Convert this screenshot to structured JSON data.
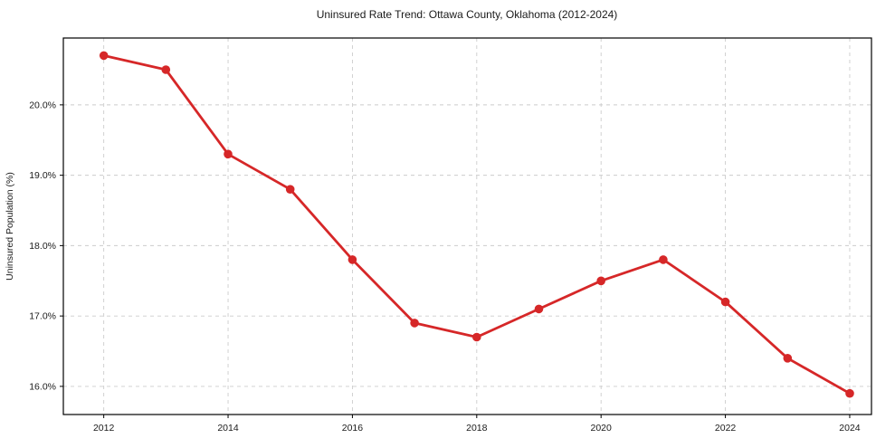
{
  "chart_data": {
    "type": "line",
    "title": "Uninsured Rate Trend: Ottawa County, Oklahoma (2012-2024)",
    "xlabel": "",
    "ylabel": "Uninsured Population (%)",
    "x": [
      2012,
      2013,
      2014,
      2015,
      2016,
      2017,
      2018,
      2019,
      2020,
      2021,
      2022,
      2023,
      2024
    ],
    "series": [
      {
        "name": "uninsured-rate",
        "values": [
          20.7,
          20.5,
          19.3,
          18.8,
          17.8,
          16.9,
          16.7,
          17.1,
          17.5,
          17.8,
          17.2,
          16.4,
          15.9
        ]
      }
    ],
    "xticks": [
      2012,
      2014,
      2016,
      2018,
      2020,
      2022,
      2024
    ],
    "xtick_labels": [
      "2012",
      "2014",
      "2016",
      "2018",
      "2020",
      "2022",
      "2024"
    ],
    "yticks": [
      16,
      17,
      18,
      19,
      20
    ],
    "ytick_labels": [
      "16.0%",
      "17.0%",
      "18.0%",
      "19.0%",
      "20.0%"
    ],
    "xlim": [
      2011.35,
      2024.35
    ],
    "ylim": [
      15.6,
      20.95
    ],
    "grid": true,
    "legend": "none",
    "line_color": "#d62728",
    "marker": "circle",
    "grid_color": "#cccccc",
    "frame_color": "#000000"
  }
}
